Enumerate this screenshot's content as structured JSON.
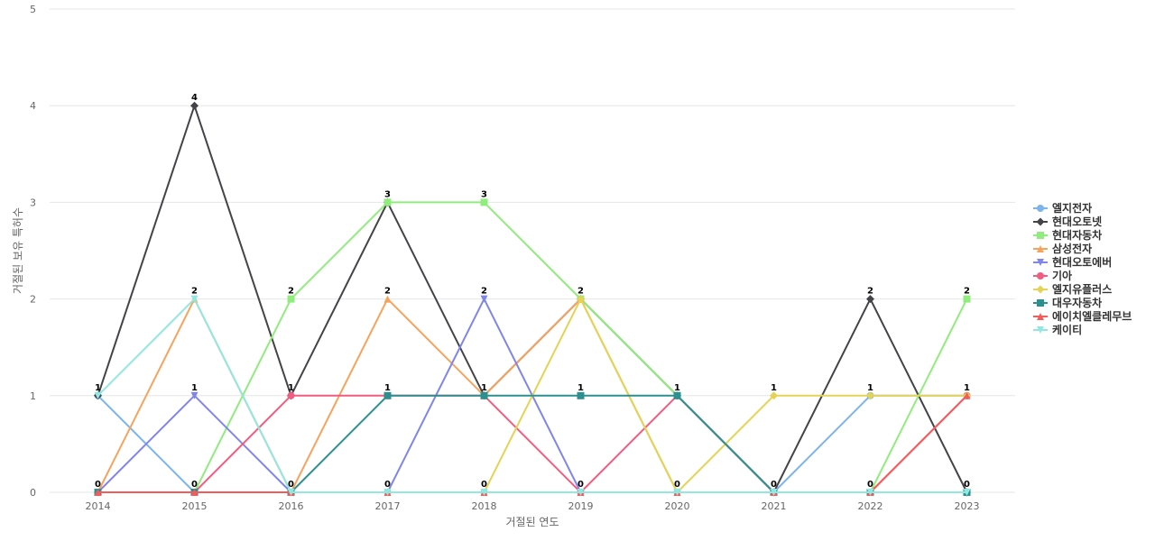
{
  "chart_data": {
    "type": "line",
    "title": "",
    "xlabel": "거절된 연도",
    "ylabel": "거절된 보유 특허수",
    "x": [
      "2014",
      "2015",
      "2016",
      "2017",
      "2018",
      "2019",
      "2020",
      "2021",
      "2022",
      "2023"
    ],
    "ylim": [
      0,
      5
    ],
    "yticks": [
      0,
      1,
      2,
      3,
      4,
      5
    ],
    "grid": true,
    "legend_position": "right",
    "series": [
      {
        "name": "엘지전자",
        "color": "#7cb5ec",
        "marker": "circle",
        "values": [
          1,
          0,
          0,
          0,
          0,
          0,
          0,
          0,
          1,
          1
        ]
      },
      {
        "name": "현대오토넷",
        "color": "#434348",
        "marker": "diamond",
        "values": [
          1,
          4,
          1,
          3,
          1,
          2,
          1,
          0,
          2,
          0
        ]
      },
      {
        "name": "현대자동차",
        "color": "#90ed7d",
        "marker": "square",
        "values": [
          0,
          0,
          2,
          3,
          3,
          2,
          1,
          0,
          0,
          2
        ]
      },
      {
        "name": "삼성전자",
        "color": "#f7a35c",
        "marker": "triangle",
        "values": [
          0,
          2,
          0,
          2,
          1,
          2,
          0,
          0,
          0,
          0
        ]
      },
      {
        "name": "현대오토에버",
        "color": "#8085e9",
        "marker": "triangle-down",
        "values": [
          0,
          1,
          0,
          0,
          2,
          0,
          0,
          0,
          0,
          0
        ]
      },
      {
        "name": "기아",
        "color": "#f15c80",
        "marker": "circle",
        "values": [
          0,
          0,
          1,
          1,
          1,
          0,
          1,
          0,
          0,
          1
        ]
      },
      {
        "name": "엘지유플러스",
        "color": "#e4d354",
        "marker": "diamond",
        "values": [
          0,
          0,
          0,
          0,
          0,
          2,
          0,
          1,
          1,
          1
        ]
      },
      {
        "name": "대우자동차",
        "color": "#2b908f",
        "marker": "square",
        "values": [
          0,
          0,
          0,
          1,
          1,
          1,
          1,
          0,
          0,
          0
        ]
      },
      {
        "name": "에이치엘클레무브",
        "color": "#f45b5b",
        "marker": "triangle",
        "values": [
          0,
          0,
          0,
          0,
          0,
          0,
          0,
          0,
          0,
          1
        ]
      },
      {
        "name": "케이티",
        "color": "#91e8e1",
        "marker": "triangle-down",
        "values": [
          1,
          2,
          0,
          0,
          0,
          0,
          0,
          0,
          0,
          0
        ]
      }
    ],
    "data_labels": [
      {
        "x": "2014",
        "y": 1,
        "text": "1"
      },
      {
        "x": "2014",
        "y": 0,
        "text": "0"
      },
      {
        "x": "2015",
        "y": 4,
        "text": "4"
      },
      {
        "x": "2015",
        "y": 2,
        "text": "2"
      },
      {
        "x": "2015",
        "y": 1,
        "text": "1"
      },
      {
        "x": "2015",
        "y": 0,
        "text": "0"
      },
      {
        "x": "2016",
        "y": 2,
        "text": "2"
      },
      {
        "x": "2016",
        "y": 1,
        "text": "1"
      },
      {
        "x": "2016",
        "y": 0,
        "text": "0"
      },
      {
        "x": "2017",
        "y": 3,
        "text": "3"
      },
      {
        "x": "2017",
        "y": 2,
        "text": "2"
      },
      {
        "x": "2017",
        "y": 1,
        "text": "1"
      },
      {
        "x": "2017",
        "y": 0,
        "text": "0"
      },
      {
        "x": "2018",
        "y": 3,
        "text": "3"
      },
      {
        "x": "2018",
        "y": 2,
        "text": "2"
      },
      {
        "x": "2018",
        "y": 1,
        "text": "1"
      },
      {
        "x": "2018",
        "y": 0,
        "text": "0"
      },
      {
        "x": "2019",
        "y": 2,
        "text": "2"
      },
      {
        "x": "2019",
        "y": 1,
        "text": "1"
      },
      {
        "x": "2019",
        "y": 0,
        "text": "0"
      },
      {
        "x": "2020",
        "y": 1,
        "text": "1"
      },
      {
        "x": "2020",
        "y": 0,
        "text": "0"
      },
      {
        "x": "2021",
        "y": 1,
        "text": "1"
      },
      {
        "x": "2021",
        "y": 0,
        "text": "0"
      },
      {
        "x": "2022",
        "y": 2,
        "text": "2"
      },
      {
        "x": "2022",
        "y": 1,
        "text": "1"
      },
      {
        "x": "2022",
        "y": 0,
        "text": "0"
      },
      {
        "x": "2023",
        "y": 2,
        "text": "2"
      },
      {
        "x": "2023",
        "y": 1,
        "text": "1"
      },
      {
        "x": "2023",
        "y": 0,
        "text": "0"
      }
    ]
  }
}
